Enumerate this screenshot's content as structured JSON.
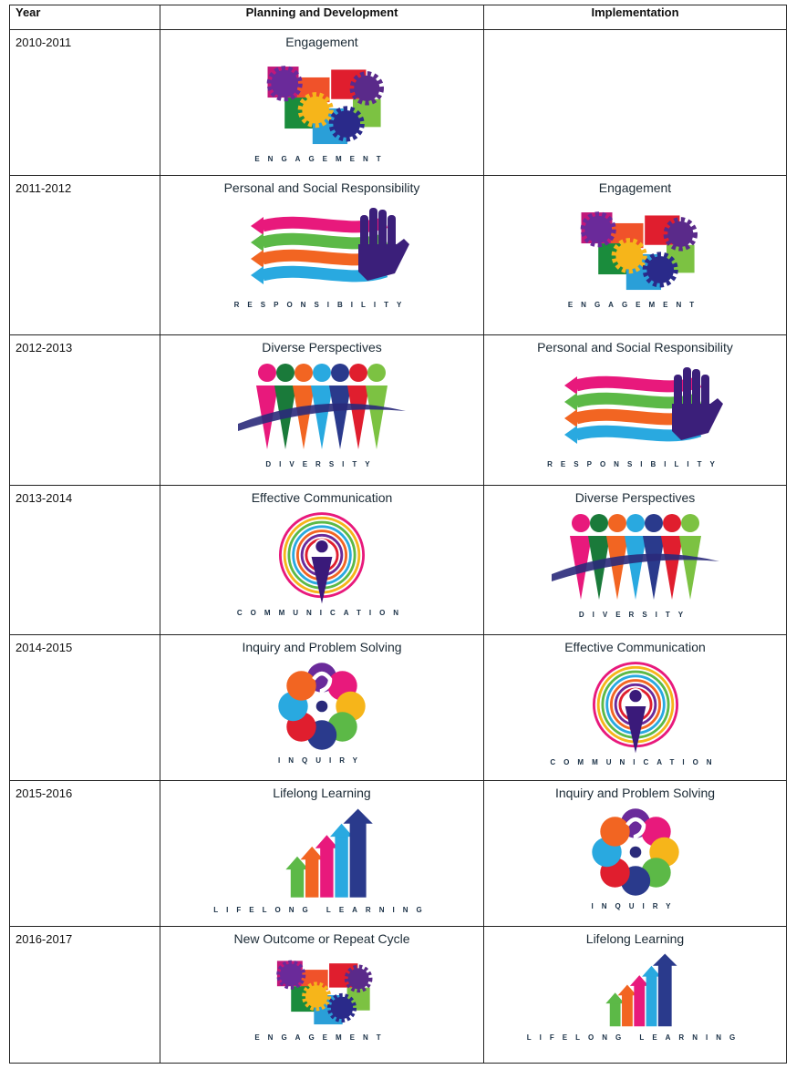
{
  "table": {
    "header": [
      "Year",
      "Planning and Development",
      "Implementation"
    ],
    "rows": [
      {
        "year": "2010-2011",
        "planning": {
          "title": "Engagement",
          "caption": "ENGAGEMENT"
        }
      },
      {
        "year": "2011-2012",
        "planning": {
          "title": "Personal and Social Responsibility",
          "caption": "RESPONSIBILITY"
        },
        "implementation": {
          "title": "Engagement",
          "caption": "ENGAGEMENT"
        }
      },
      {
        "year": "2012-2013",
        "planning": {
          "title": "Diverse Perspectives",
          "caption": "DIVERSITY"
        },
        "implementation": {
          "title": "Personal and Social Responsibility",
          "caption": "RESPONSIBILITY"
        }
      },
      {
        "year": "2013-2014",
        "planning": {
          "title": "Effective Communication",
          "caption": "COMMUNICATION"
        },
        "implementation": {
          "title": "Diverse Perspectives",
          "caption": "DIVERSITY"
        }
      },
      {
        "year": "2014-2015",
        "planning": {
          "title": "Inquiry and Problem Solving",
          "caption": "INQUIRY"
        },
        "implementation": {
          "title": "Effective Communication",
          "caption": "COMMUNICATION"
        }
      },
      {
        "year": "2015-2016",
        "planning": {
          "title": "Lifelong Learning",
          "caption": "LIFELONG LEARNING"
        },
        "implementation": {
          "title": "Inquiry and Problem Solving",
          "caption": "INQUIRY"
        }
      },
      {
        "year": "2016-2017",
        "planning": {
          "title": "New Outcome or Repeat Cycle",
          "caption": "ENGAGEMENT"
        },
        "implementation": {
          "title": "Lifelong Learning",
          "caption": "LIFELONG LEARNING"
        }
      }
    ]
  }
}
